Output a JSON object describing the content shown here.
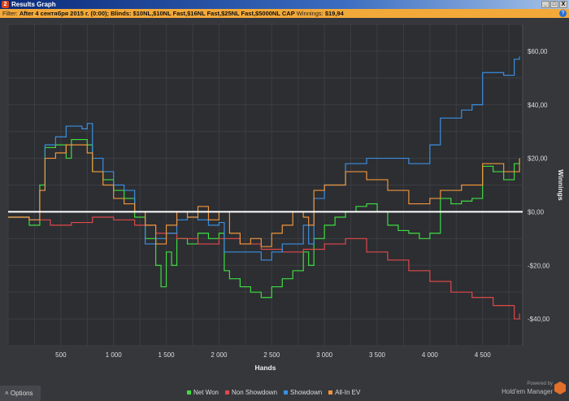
{
  "window": {
    "title": "Results Graph",
    "app_icon": "2",
    "controls": [
      "_",
      "□",
      "X"
    ]
  },
  "filter": {
    "label": "Filter:",
    "text": "After 4 сентября 2015 г. (0:00); Blinds: $10NL,$10NL Fast,$16NL Fast,$25NL Fast,$5000NL CAP",
    "winnings_label": "Winnings:",
    "winnings_value": "$19,94"
  },
  "options_label": "Options",
  "brand": {
    "powered": "Powered by",
    "name": "Hold'em Manager",
    "logo": "2"
  },
  "chart_data": {
    "type": "line",
    "xlabel": "Hands",
    "ylabel": "Winnings",
    "xlim": [
      0,
      4880
    ],
    "ylim": [
      -50,
      70
    ],
    "xticks": [
      500,
      1000,
      1500,
      2000,
      2500,
      3000,
      3500,
      4000,
      4500
    ],
    "xtick_labels": [
      "500",
      "1 000",
      "1 500",
      "2 000",
      "2 500",
      "3 000",
      "3 500",
      "4 000",
      "4 500"
    ],
    "yticks": [
      -40,
      -20,
      0,
      20,
      40,
      60
    ],
    "ytick_labels": [
      "-$40,00",
      "-$20,00",
      "$0,00",
      "$20,00",
      "$40,00",
      "$60,00"
    ],
    "grid": true,
    "legend": "bottom",
    "series": [
      {
        "name": "Net Won",
        "color": "#3fdc3f",
        "points": [
          [
            0,
            -2
          ],
          [
            200,
            -5
          ],
          [
            300,
            10
          ],
          [
            350,
            24
          ],
          [
            450,
            25
          ],
          [
            550,
            20
          ],
          [
            600,
            27
          ],
          [
            750,
            25
          ],
          [
            800,
            15
          ],
          [
            900,
            12
          ],
          [
            1000,
            8
          ],
          [
            1100,
            5
          ],
          [
            1200,
            -2
          ],
          [
            1300,
            -10
          ],
          [
            1400,
            -20
          ],
          [
            1450,
            -28
          ],
          [
            1500,
            -15
          ],
          [
            1550,
            -20
          ],
          [
            1600,
            -10
          ],
          [
            1700,
            -12
          ],
          [
            1800,
            -8
          ],
          [
            1900,
            -10
          ],
          [
            2000,
            -8
          ],
          [
            2050,
            -22
          ],
          [
            2100,
            -25
          ],
          [
            2200,
            -28
          ],
          [
            2300,
            -30
          ],
          [
            2400,
            -32
          ],
          [
            2500,
            -28
          ],
          [
            2600,
            -25
          ],
          [
            2700,
            -22
          ],
          [
            2800,
            -15
          ],
          [
            2850,
            -20
          ],
          [
            2900,
            -10
          ],
          [
            3000,
            -5
          ],
          [
            3100,
            -2
          ],
          [
            3200,
            0
          ],
          [
            3300,
            2
          ],
          [
            3400,
            3
          ],
          [
            3500,
            0
          ],
          [
            3600,
            -5
          ],
          [
            3700,
            -7
          ],
          [
            3800,
            -8
          ],
          [
            3900,
            -10
          ],
          [
            4000,
            -8
          ],
          [
            4100,
            5
          ],
          [
            4200,
            3
          ],
          [
            4300,
            4
          ],
          [
            4400,
            5
          ],
          [
            4500,
            17
          ],
          [
            4600,
            15
          ],
          [
            4700,
            12
          ],
          [
            4800,
            18
          ],
          [
            4850,
            20
          ]
        ]
      },
      {
        "name": "Non Showdown",
        "color": "#e04848",
        "points": [
          [
            0,
            -2
          ],
          [
            200,
            -3
          ],
          [
            400,
            -5
          ],
          [
            600,
            -4
          ],
          [
            800,
            -2
          ],
          [
            1000,
            -3
          ],
          [
            1200,
            -5
          ],
          [
            1400,
            -8
          ],
          [
            1600,
            -10
          ],
          [
            1800,
            -12
          ],
          [
            2000,
            -10
          ],
          [
            2200,
            -12
          ],
          [
            2400,
            -14
          ],
          [
            2600,
            -15
          ],
          [
            2800,
            -14
          ],
          [
            3000,
            -12
          ],
          [
            3200,
            -10
          ],
          [
            3400,
            -15
          ],
          [
            3600,
            -18
          ],
          [
            3800,
            -22
          ],
          [
            4000,
            -26
          ],
          [
            4200,
            -30
          ],
          [
            4400,
            -32
          ],
          [
            4600,
            -35
          ],
          [
            4800,
            -40
          ],
          [
            4850,
            -38
          ]
        ]
      },
      {
        "name": "Showdown",
        "color": "#3a8fe0",
        "points": [
          [
            0,
            -2
          ],
          [
            200,
            -3
          ],
          [
            300,
            8
          ],
          [
            350,
            25
          ],
          [
            450,
            28
          ],
          [
            550,
            32
          ],
          [
            700,
            31
          ],
          [
            750,
            33
          ],
          [
            800,
            20
          ],
          [
            900,
            15
          ],
          [
            1000,
            10
          ],
          [
            1100,
            8
          ],
          [
            1200,
            0
          ],
          [
            1300,
            -12
          ],
          [
            1400,
            -10
          ],
          [
            1500,
            -8
          ],
          [
            1600,
            -3
          ],
          [
            1700,
            -2
          ],
          [
            1800,
            -3
          ],
          [
            1900,
            -5
          ],
          [
            2000,
            -4
          ],
          [
            2050,
            -15
          ],
          [
            2200,
            -15
          ],
          [
            2400,
            -18
          ],
          [
            2500,
            -15
          ],
          [
            2600,
            -12
          ],
          [
            2800,
            -5
          ],
          [
            2850,
            -12
          ],
          [
            2900,
            5
          ],
          [
            3000,
            10
          ],
          [
            3200,
            18
          ],
          [
            3400,
            20
          ],
          [
            3600,
            20
          ],
          [
            3800,
            18
          ],
          [
            4000,
            25
          ],
          [
            4100,
            35
          ],
          [
            4300,
            38
          ],
          [
            4400,
            40
          ],
          [
            4500,
            52
          ],
          [
            4700,
            51
          ],
          [
            4800,
            57
          ],
          [
            4850,
            58
          ]
        ]
      },
      {
        "name": "All-In EV",
        "color": "#f0943a",
        "points": [
          [
            0,
            -2
          ],
          [
            200,
            -3
          ],
          [
            300,
            8
          ],
          [
            350,
            20
          ],
          [
            450,
            22
          ],
          [
            550,
            25
          ],
          [
            750,
            22
          ],
          [
            800,
            15
          ],
          [
            900,
            10
          ],
          [
            1000,
            5
          ],
          [
            1100,
            3
          ],
          [
            1200,
            0
          ],
          [
            1300,
            -5
          ],
          [
            1400,
            -12
          ],
          [
            1500,
            -5
          ],
          [
            1600,
            0
          ],
          [
            1700,
            -2
          ],
          [
            1800,
            2
          ],
          [
            1900,
            -3
          ],
          [
            2000,
            0
          ],
          [
            2100,
            -8
          ],
          [
            2200,
            -12
          ],
          [
            2300,
            -10
          ],
          [
            2400,
            -13
          ],
          [
            2500,
            -8
          ],
          [
            2600,
            -5
          ],
          [
            2700,
            0
          ],
          [
            2800,
            -2
          ],
          [
            2850,
            -5
          ],
          [
            2900,
            8
          ],
          [
            3000,
            10
          ],
          [
            3200,
            15
          ],
          [
            3400,
            12
          ],
          [
            3600,
            8
          ],
          [
            3800,
            3
          ],
          [
            4000,
            5
          ],
          [
            4100,
            8
          ],
          [
            4300,
            10
          ],
          [
            4400,
            10
          ],
          [
            4500,
            18
          ],
          [
            4700,
            15
          ],
          [
            4850,
            20
          ]
        ]
      }
    ]
  }
}
